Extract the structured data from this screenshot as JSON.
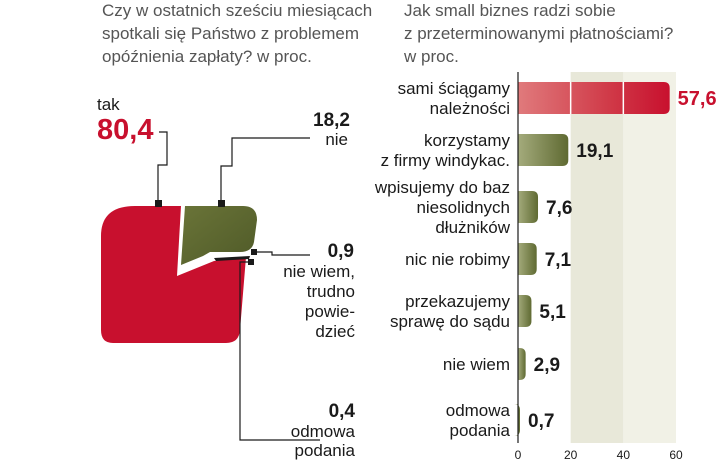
{
  "chart_data": [
    {
      "type": "pie",
      "title_lines": [
        "Czy w ostatnich sześciu miesiącach",
        "spotkali się Państwo z problemem",
        "opóźnienia zapłaty? w proc."
      ],
      "slices": [
        {
          "label_lines": [
            "tak"
          ],
          "value": 80.4,
          "value_text": "80,4"
        },
        {
          "label_lines": [
            "nie"
          ],
          "value": 18.2,
          "value_text": "18,2"
        },
        {
          "label_lines": [
            "nie wiem,",
            "trudno",
            "powie-",
            "dzieć"
          ],
          "value": 0.9,
          "value_text": "0,9"
        },
        {
          "label_lines": [
            "odmowa",
            "podania"
          ],
          "value": 0.4,
          "value_text": "0,4"
        }
      ],
      "colors": [
        "#c8102e",
        "#5f6a32",
        "#1a1a1a",
        "#1a1a1a"
      ]
    },
    {
      "type": "bar",
      "orientation": "horizontal",
      "title_lines": [
        "Jak small biznes radzi sobie",
        "z przeterminowanymi płatnościami?",
        "w proc."
      ],
      "categories": [
        [
          "sami ściągamy",
          "należności"
        ],
        [
          "korzystamy",
          "z firmy windykac."
        ],
        [
          "wpisujemy do baz",
          "niesolidnych",
          "dłużników"
        ],
        [
          "nic nie robimy"
        ],
        [
          "przekazujemy",
          "sprawę do sądu"
        ],
        [
          "nie wiem"
        ],
        [
          "odmowa",
          "podania"
        ]
      ],
      "values": [
        57.6,
        19.1,
        7.6,
        7.1,
        5.1,
        2.9,
        0.7
      ],
      "value_labels": [
        "57,6",
        "19,1",
        "7,6",
        "7,1",
        "5,1",
        "2,9",
        "0,7"
      ],
      "xlim": [
        0,
        60
      ],
      "ticks": [
        0,
        20,
        40,
        60
      ],
      "colors": {
        "highlight": "#c8102e",
        "bar": "#5f6a32",
        "band": "#e8e8d9"
      }
    }
  ]
}
